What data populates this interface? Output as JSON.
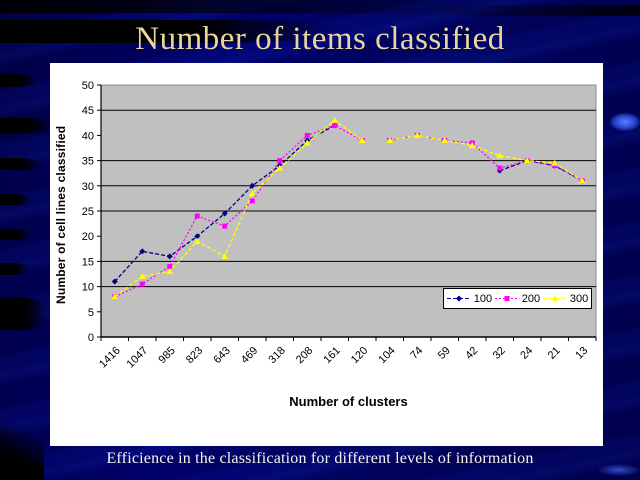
{
  "slide": {
    "title": "Number of items classified",
    "caption": "Efficience in the classification for different levels of information",
    "title_color": "#E8D5A2",
    "caption_color": "#F6F6EC",
    "background_color": "#000066"
  },
  "chart_data": {
    "type": "line",
    "title": "",
    "xlabel": "Number of clusters",
    "ylabel": "Number of cell lines classified",
    "ylim": [
      0,
      50
    ],
    "ytick_step": 5,
    "gridlines_at": [
      45,
      35,
      30,
      25,
      15,
      10
    ],
    "grid": true,
    "plot_bg": "#C0C0C0",
    "legend_position": "inside-right",
    "categories": [
      "1416",
      "1047",
      "985",
      "823",
      "643",
      "469",
      "318",
      "208",
      "161",
      "120",
      "104",
      "74",
      "59",
      "42",
      "32",
      "24",
      "21",
      "13"
    ],
    "series": [
      {
        "name": "100",
        "color": "#000080",
        "marker": "diamond",
        "dash": "4 2",
        "values": [
          11,
          17,
          16,
          20,
          24.5,
          30,
          34,
          39,
          42,
          null,
          null,
          null,
          null,
          null,
          33,
          35,
          34,
          31
        ],
        "gap_after": []
      },
      {
        "name": "200",
        "color": "#FF00FF",
        "marker": "square",
        "dash": "2 2",
        "values": [
          8,
          10.5,
          14,
          24,
          22,
          27,
          35,
          40,
          42,
          39,
          39,
          40,
          39,
          38.5,
          33.5,
          35,
          34,
          31
        ],
        "gap_after": [
          9
        ]
      },
      {
        "name": "300",
        "color": "#FFFF00",
        "marker": "triangle",
        "dash": "4 2",
        "values": [
          8,
          12,
          13,
          19,
          16,
          28.5,
          33.5,
          38.5,
          43,
          39,
          39,
          40,
          39,
          38,
          36,
          35,
          34.5,
          31
        ],
        "gap_after": [
          9
        ]
      }
    ]
  }
}
